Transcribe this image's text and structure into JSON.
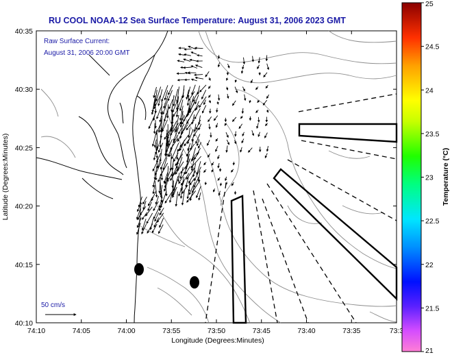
{
  "title": "RU COOL  NOAA-12  Sea Surface Temperature:  August 31, 2006 2023 GMT",
  "annotation": {
    "line1": "Raw Surface Current:",
    "line2": "August 31, 2006 20:00 GMT"
  },
  "scale_label": "50 cm/s",
  "axes": {
    "xlabel": "Longitude (Degrees:Minutes)",
    "ylabel": "Latitude (Degrees:Minutes)",
    "x_ticks": [
      "74:10",
      "74:05",
      "74:00",
      "73:55",
      "73:50",
      "73:45",
      "73:40",
      "73:35",
      "73:3"
    ],
    "y_ticks": [
      "40:35",
      "40:30",
      "40:25",
      "40:20",
      "40:15",
      "40:10"
    ]
  },
  "colorbar": {
    "label": "Temperature (°C)",
    "ticks": [
      "25",
      "24.5",
      "24",
      "23.5",
      "23",
      "22.5",
      "22",
      "21.5",
      "21"
    ],
    "min": 21,
    "max": 25
  },
  "colors": {
    "title": "#1a1aa6",
    "arrows": "#000000",
    "coast": "#000000",
    "bathymetry": "#8c8c8c"
  }
}
